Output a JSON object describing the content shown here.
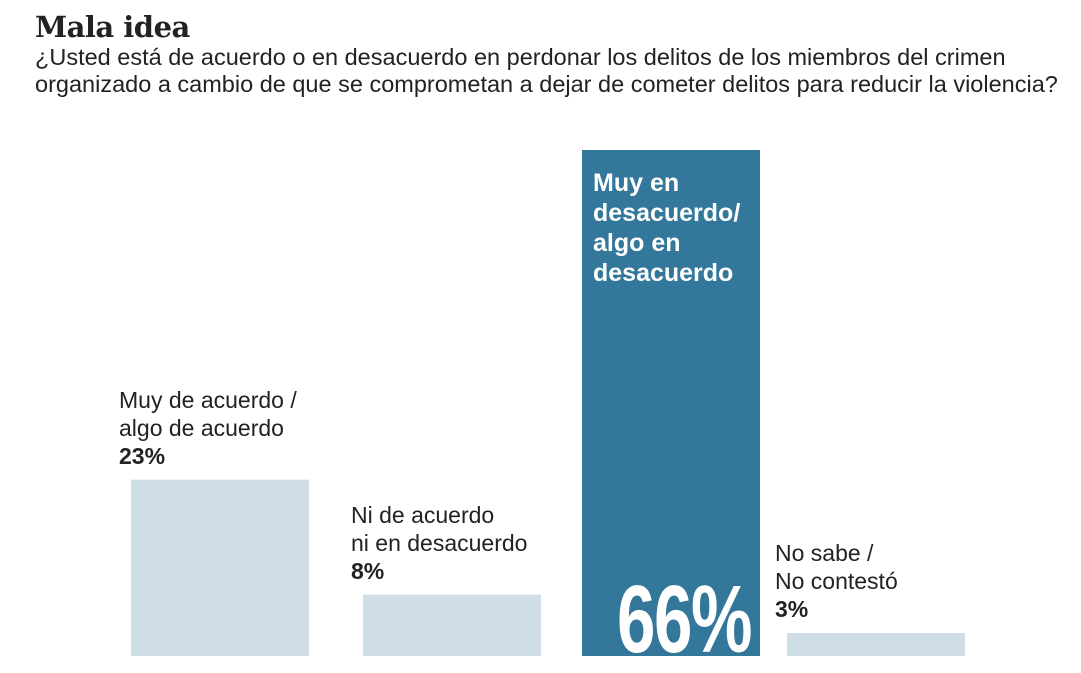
{
  "title": "Mala idea",
  "subtitle": "¿Usted está de acuerdo o en desacuerdo en perdonar los delitos de los miembros del crimen organizado a cambio de que se comprometan a dejar de cometer delitos para reducir la violencia?",
  "colors": {
    "highlight": "#33779a",
    "default": "#cfdee6"
  },
  "chart_data": {
    "type": "bar",
    "title": "Mala idea",
    "categories": [
      "Muy de acuerdo / algo de acuerdo",
      "Ni de acuerdo ni en desacuerdo",
      "Muy en desacuerdo/ algo en desacuerdo",
      "No sabe / No contestó"
    ],
    "values": [
      23,
      8,
      66,
      3
    ],
    "value_labels": [
      "23%",
      "8%",
      "66%",
      "3%"
    ],
    "highlight_index": 2,
    "ylim": [
      0,
      66
    ],
    "grid": false,
    "label_lines": [
      [
        "Muy de acuerdo /",
        "algo de acuerdo"
      ],
      [
        "Ni de acuerdo",
        "ni en desacuerdo"
      ],
      [
        "Muy en",
        "desacuerdo/",
        "algo en",
        "desacuerdo"
      ],
      [
        "No sabe /",
        "No contestó"
      ]
    ]
  }
}
